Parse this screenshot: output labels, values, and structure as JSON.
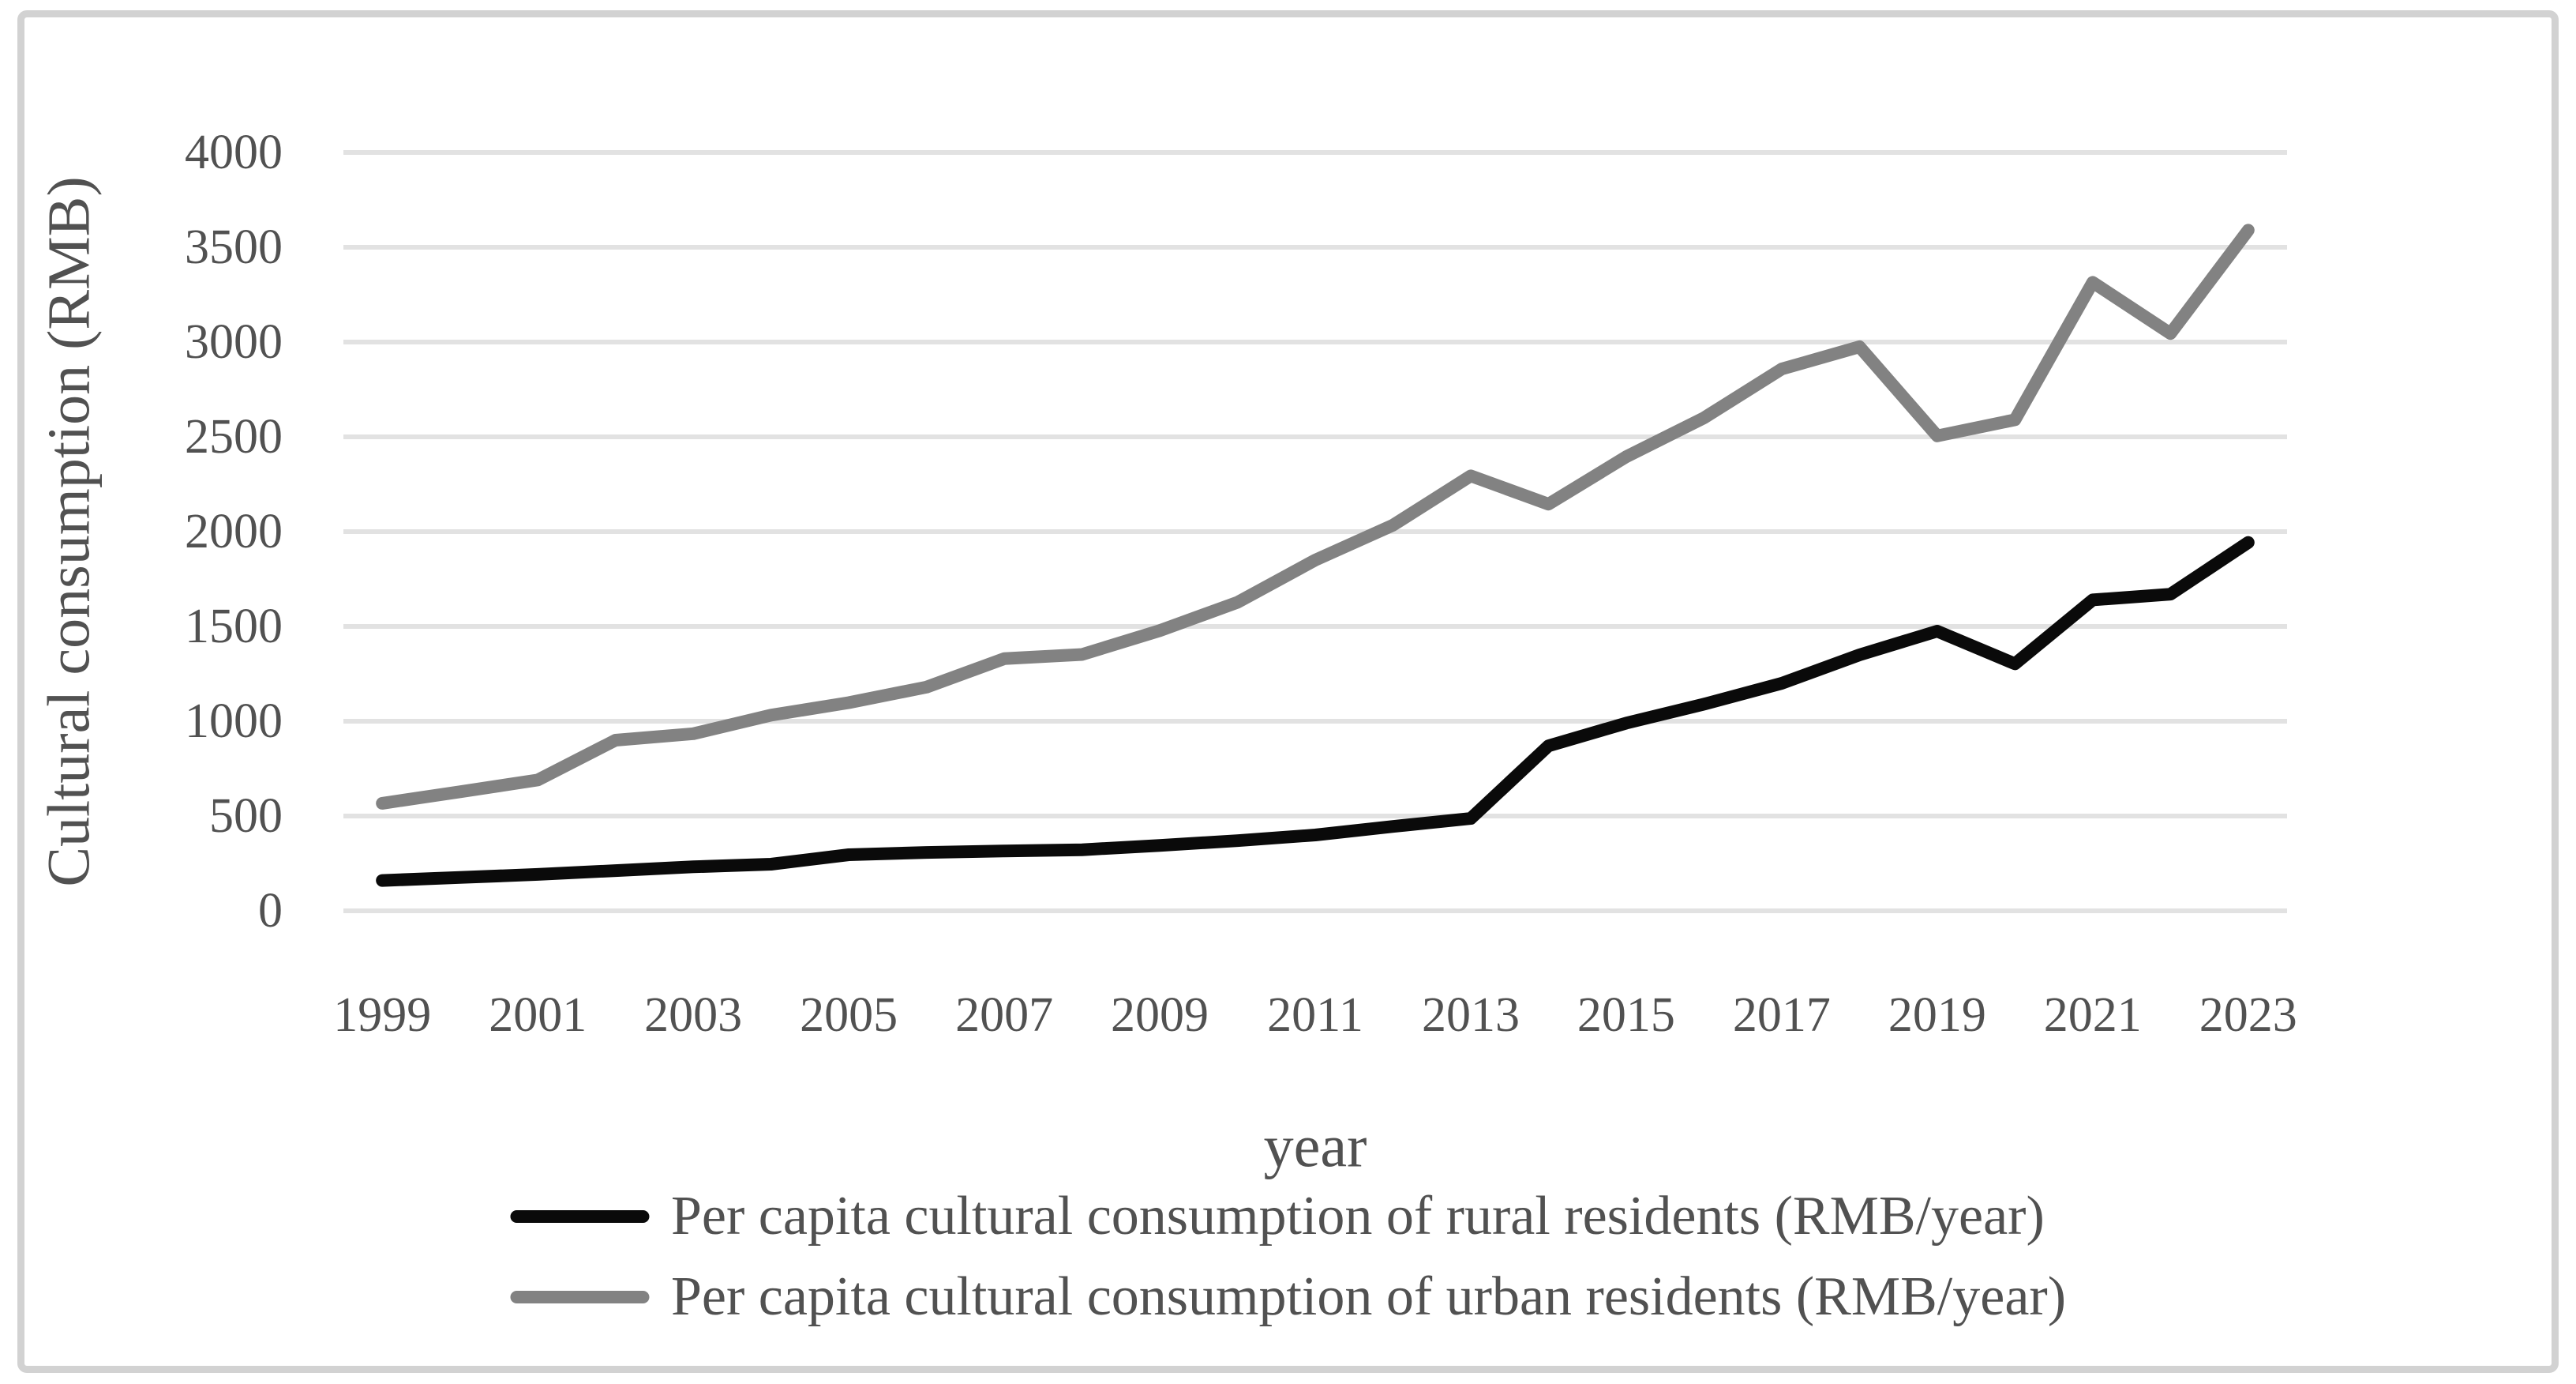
{
  "figure": {
    "y_axis_title": "Cultural consumption (RMB)",
    "x_axis_title": "year"
  },
  "colors": {
    "background": "#ffffff",
    "frame_border": "#d2d2d2",
    "gridline": "#e2e2e2",
    "text": "#515151",
    "rural_line": "#0a0a0a",
    "urban_line": "#828282"
  },
  "chart_data": {
    "type": "line",
    "title": "",
    "xlabel": "year",
    "ylabel": "Cultural consumption (RMB)",
    "x": [
      1999,
      2000,
      2001,
      2002,
      2003,
      2004,
      2005,
      2006,
      2007,
      2008,
      2009,
      2010,
      2011,
      2012,
      2013,
      2014,
      2015,
      2016,
      2017,
      2018,
      2019,
      2020,
      2021,
      2022,
      2023
    ],
    "xtick_labels": [
      "1999",
      "2001",
      "2003",
      "2005",
      "2007",
      "2009",
      "2011",
      "2013",
      "2015",
      "2017",
      "2019",
      "2021",
      "2023"
    ],
    "yticks": [
      0,
      500,
      1000,
      1500,
      2000,
      2500,
      3000,
      3500,
      4000
    ],
    "ytick_labels": [
      "0",
      "500",
      "1000",
      "1500",
      "2000",
      "2500",
      "3000",
      "3500",
      "4000"
    ],
    "ylim": [
      0,
      4000
    ],
    "grid": "horizontal",
    "legend_position": "bottom",
    "series": [
      {
        "name": "Per capita cultural consumption of rural residents (RMB/year)",
        "color": "#0a0a0a",
        "values": [
          160,
          176,
          192,
          212,
          232,
          246,
          296,
          308,
          316,
          322,
          345,
          370,
          400,
          445,
          487,
          870,
          990,
          1090,
          1200,
          1350,
          1475,
          1303,
          1640,
          1670,
          1943
        ]
      },
      {
        "name": "Per capita cultural consumption of urban residents (RMB/year)",
        "color": "#828282",
        "values": [
          567,
          628,
          690,
          900,
          934,
          1032,
          1098,
          1180,
          1330,
          1352,
          1478,
          1627,
          1850,
          2034,
          2294,
          2145,
          2395,
          2600,
          2858,
          2975,
          2505,
          2590,
          3315,
          3045,
          3590
        ]
      }
    ]
  }
}
